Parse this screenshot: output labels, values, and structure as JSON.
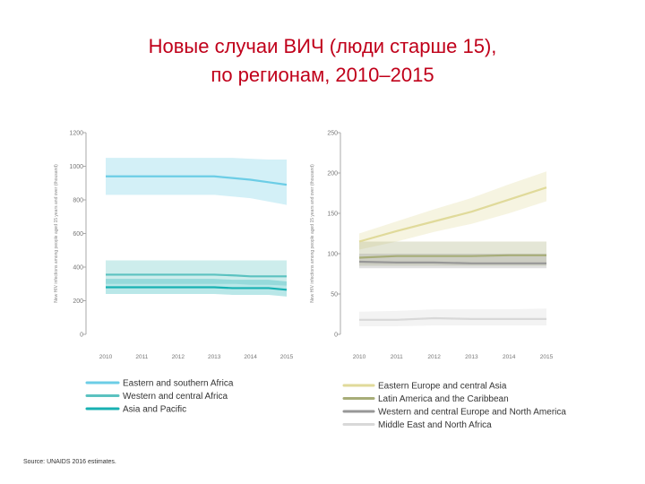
{
  "title": {
    "line1": "Новые случаи ВИЧ (люди старше 15),",
    "line2": "по регионам, 2010–2015"
  },
  "source": "Source: UNAIDS 2016 estimates.",
  "colors": {
    "title": "#c0001a",
    "eastern_southern_africa": "#6ccde6",
    "western_central_africa": "#5bc2c0",
    "asia_pacific": "#18b1b2",
    "eastern_europe_central_asia": "#e0da9a",
    "latin_america_caribbean": "#a7ad78",
    "western_central_europe_north_america": "#979797",
    "middle_east_north_africa": "#d8d8d8",
    "axis": "#a8a8a8"
  },
  "chart_data": [
    {
      "type": "line",
      "ylabel": "New HIV infections among people aged 15 years and over (thousand)",
      "x": [
        2010,
        2011,
        2012,
        2013,
        2014,
        2015
      ],
      "x_ticks": [
        "2010",
        "2011",
        "2012",
        "2013",
        "2014",
        "2015"
      ],
      "ylim": [
        0,
        1200
      ],
      "y_ticks": [
        "0",
        "200",
        "400",
        "600",
        "800",
        "1000",
        "1200"
      ],
      "y_tick_values": [
        0,
        200,
        400,
        600,
        800,
        1000,
        1200
      ],
      "grid": false,
      "legend_position": "bottom",
      "series": [
        {
          "name": "Eastern and southern Africa",
          "color_key": "eastern_southern_africa",
          "x": [
            2010,
            2011,
            2012,
            2013,
            2013.5,
            2014,
            2014.5,
            2015
          ],
          "values": [
            940,
            940,
            940,
            940,
            930,
            920,
            905,
            890
          ],
          "lower": [
            830,
            830,
            830,
            830,
            820,
            810,
            790,
            770
          ],
          "upper": [
            1050,
            1050,
            1050,
            1050,
            1050,
            1045,
            1040,
            1040
          ]
        },
        {
          "name": "Western and central Africa",
          "color_key": "western_central_africa",
          "x": [
            2010,
            2011,
            2012,
            2013,
            2013.6,
            2014,
            2014.5,
            2015
          ],
          "values": [
            355,
            355,
            355,
            355,
            350,
            345,
            345,
            345
          ],
          "lower": [
            300,
            300,
            300,
            300,
            300,
            295,
            295,
            290
          ],
          "upper": [
            440,
            440,
            440,
            440,
            440,
            440,
            440,
            440
          ]
        },
        {
          "name": "Asia and Pacific",
          "color_key": "asia_pacific",
          "x": [
            2010,
            2011,
            2012,
            2013,
            2013.5,
            2014,
            2014.5,
            2015
          ],
          "values": [
            280,
            280,
            280,
            280,
            275,
            275,
            275,
            265
          ],
          "lower": [
            240,
            240,
            240,
            240,
            235,
            235,
            235,
            225
          ],
          "upper": [
            330,
            330,
            330,
            330,
            325,
            325,
            325,
            315
          ]
        }
      ]
    },
    {
      "type": "line",
      "ylabel": "New HIV infections among people aged 15 years and over (thousand)",
      "x": [
        2010,
        2011,
        2012,
        2013,
        2014,
        2015
      ],
      "x_ticks": [
        "2010",
        "2011",
        "2012",
        "2013",
        "2014",
        "2015"
      ],
      "ylim": [
        0,
        250
      ],
      "y_ticks": [
        "0",
        "50",
        "100",
        "150",
        "200",
        "250"
      ],
      "y_tick_values": [
        0,
        50,
        100,
        150,
        200,
        250
      ],
      "grid": false,
      "legend_position": "bottom",
      "series": [
        {
          "name": "Eastern Europe and central Asia",
          "color_key": "eastern_europe_central_asia",
          "x": [
            2010,
            2011,
            2012,
            2013,
            2014,
            2015
          ],
          "values": [
            115,
            128,
            140,
            152,
            167,
            182
          ],
          "lower": [
            105,
            115,
            127,
            137,
            150,
            165
          ],
          "upper": [
            125,
            140,
            155,
            169,
            186,
            202
          ]
        },
        {
          "name": "Latin America and the Caribbean",
          "color_key": "latin_america_caribbean",
          "x": [
            2010,
            2011,
            2012,
            2013,
            2014,
            2015
          ],
          "values": [
            95,
            97,
            97,
            97,
            98,
            98
          ],
          "lower": [
            85,
            85,
            85,
            85,
            85,
            85
          ],
          "upper": [
            115,
            115,
            115,
            115,
            115,
            115
          ]
        },
        {
          "name": "Western and central Europe and North America",
          "color_key": "western_central_europe_north_america",
          "x": [
            2010,
            2011,
            2012,
            2013,
            2014,
            2015
          ],
          "values": [
            90,
            89,
            89,
            88,
            88,
            88
          ],
          "lower": [
            82,
            82,
            82,
            82,
            82,
            82
          ],
          "upper": [
            100,
            100,
            100,
            100,
            100,
            100
          ]
        },
        {
          "name": "Middle East and North Africa",
          "color_key": "middle_east_north_africa",
          "x": [
            2010,
            2011,
            2012,
            2013,
            2014,
            2015
          ],
          "values": [
            18,
            18,
            20,
            19,
            19,
            19
          ],
          "lower": [
            10,
            10,
            11,
            11,
            11,
            11
          ],
          "upper": [
            28,
            29,
            31,
            31,
            31,
            32
          ]
        }
      ]
    }
  ]
}
